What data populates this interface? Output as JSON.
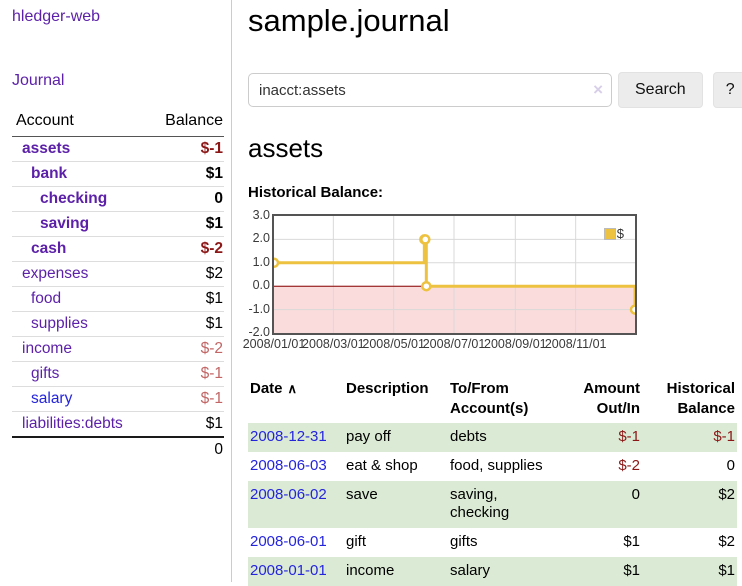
{
  "colors": {
    "link_purple": "#5c21a8",
    "link_blue": "#2424dd",
    "negative_dark_red": "#8c1717",
    "negative_light_red": "#c26565",
    "row_stripe_green": "#dbead5",
    "chart_line_yellow": "#edc240"
  },
  "sidebar": {
    "app_title": "hledger-web",
    "journal_link": "Journal",
    "table": {
      "account_header": "Account",
      "balance_header": "Balance",
      "rows": [
        {
          "name": "assets",
          "depth": 1,
          "bold": true,
          "link_color": "purple",
          "balance": "$-1",
          "balance_color": "negative"
        },
        {
          "name": "bank",
          "depth": 2,
          "bold": true,
          "link_color": "purple",
          "balance": "$1",
          "balance_color": "normal"
        },
        {
          "name": "checking",
          "depth": 3,
          "bold": true,
          "link_color": "purple",
          "balance": "0",
          "balance_color": "normal"
        },
        {
          "name": "saving",
          "depth": 3,
          "bold": true,
          "link_color": "purple",
          "balance": "$1",
          "balance_color": "normal"
        },
        {
          "name": "cash",
          "depth": 2,
          "bold": true,
          "link_color": "purple",
          "balance": "$-2",
          "balance_color": "negative"
        },
        {
          "name": "expenses",
          "depth": 1,
          "bold": false,
          "link_color": "purple",
          "balance": "$2",
          "balance_color": "normal"
        },
        {
          "name": "food",
          "depth": 2,
          "bold": false,
          "link_color": "purple",
          "balance": "$1",
          "balance_color": "normal"
        },
        {
          "name": "supplies",
          "depth": 2,
          "bold": false,
          "link_color": "purple",
          "balance": "$1",
          "balance_color": "normal"
        },
        {
          "name": "income",
          "depth": 1,
          "bold": false,
          "link_color": "purple",
          "balance": "$-2",
          "balance_color": "negative-light"
        },
        {
          "name": "gifts",
          "depth": 2,
          "bold": false,
          "link_color": "purple",
          "balance": "$-1",
          "balance_color": "negative-light"
        },
        {
          "name": "salary",
          "depth": 2,
          "bold": false,
          "link_color": "blue",
          "balance": "$-1",
          "balance_color": "negative-light"
        },
        {
          "name": "liabilities:debts",
          "depth": 1,
          "bold": false,
          "link_color": "purple",
          "balance": "$1",
          "balance_color": "normal"
        }
      ],
      "total_balance": "0"
    }
  },
  "header": {
    "title": "sample.journal"
  },
  "search": {
    "value": "inacct:assets",
    "clear_icon": "×",
    "button_label": "Search",
    "help_label": "?"
  },
  "account_page": {
    "title": "assets",
    "chart_label": "Historical Balance:"
  },
  "chart_data": {
    "type": "line",
    "title": "Historical Balance:",
    "legend_position": "top-right",
    "grid": true,
    "series": [
      {
        "name": "$",
        "color": "#edc240",
        "step": true,
        "points": [
          {
            "date": "2008-01-01",
            "day": 0,
            "value": 1
          },
          {
            "date": "2008-06-01",
            "day": 152,
            "value": 2
          },
          {
            "date": "2008-06-02",
            "day": 153,
            "value": 2
          },
          {
            "date": "2008-06-03",
            "day": 154,
            "value": 0
          },
          {
            "date": "2008-12-31",
            "day": 365,
            "value": -1
          }
        ]
      }
    ],
    "x_tick_labels": [
      "2008/01/01",
      "2008/03/01",
      "2008/05/01",
      "2008/07/01",
      "2008/09/01",
      "2008/11/01"
    ],
    "x_tick_days": [
      0,
      60,
      121,
      182,
      244,
      305
    ],
    "x_range_days": [
      0,
      365
    ],
    "y_ticks": [
      3.0,
      2.0,
      1.0,
      0.0,
      -1.0,
      -2.0
    ],
    "ylim": [
      -2,
      3
    ],
    "negative_fill": "#fbdcdc",
    "zero_line_color": "#8b0000",
    "grid_color": "#d9d9d9"
  },
  "register": {
    "columns": [
      {
        "label": "Date",
        "sort_icon": "∧"
      },
      {
        "label": "Description"
      },
      {
        "label": "To/From\nAccount(s)"
      },
      {
        "label": "Amount\nOut/In",
        "align": "right"
      },
      {
        "label": "Historical\nBalance",
        "align": "right"
      }
    ],
    "rows": [
      {
        "date": "2008-12-31",
        "description": "pay off",
        "accounts": "debts",
        "amount": "$-1",
        "amount_negative": true,
        "balance": "$-1",
        "balance_negative": true
      },
      {
        "date": "2008-06-03",
        "description": "eat & shop",
        "accounts": "food, supplies",
        "amount": "$-2",
        "amount_negative": true,
        "balance": "0",
        "balance_negative": false
      },
      {
        "date": "2008-06-02",
        "description": "save",
        "accounts": "saving, checking",
        "amount": "0",
        "amount_negative": false,
        "balance": "$2",
        "balance_negative": false
      },
      {
        "date": "2008-06-01",
        "description": "gift",
        "accounts": "gifts",
        "amount": "$1",
        "amount_negative": false,
        "balance": "$2",
        "balance_negative": false
      },
      {
        "date": "2008-01-01",
        "description": "income",
        "accounts": "salary",
        "amount": "$1",
        "amount_negative": false,
        "balance": "$1",
        "balance_negative": false
      }
    ]
  }
}
